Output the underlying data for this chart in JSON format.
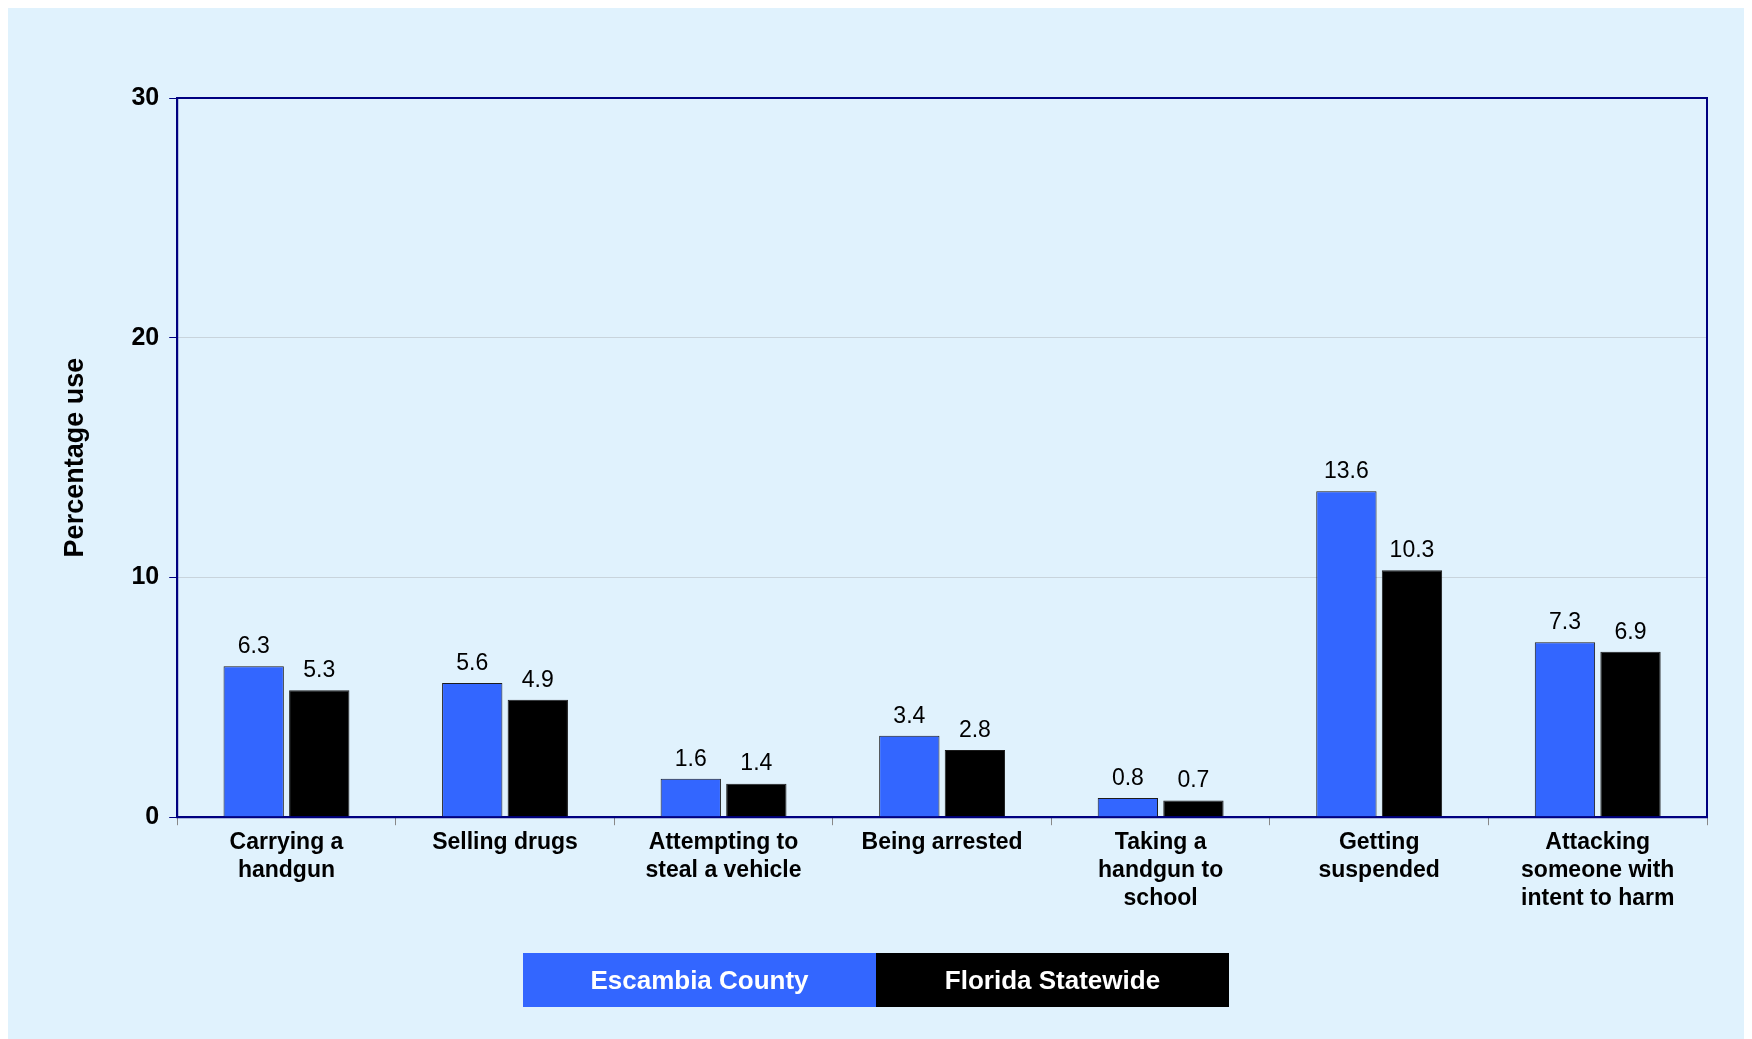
{
  "chart_data": {
    "type": "bar",
    "ylabel": "Percentage use",
    "categories": [
      "Carrying a handgun",
      "Selling drugs",
      "Attempting to steal a vehicle",
      "Being arrested",
      "Taking a handgun to school",
      "Getting suspended",
      "Attacking someone with intent to harm"
    ],
    "series": [
      {
        "name": "Escambia County",
        "color": "#3366ff",
        "values": [
          6.3,
          5.6,
          1.6,
          3.4,
          0.8,
          13.6,
          7.3
        ]
      },
      {
        "name": "Florida Statewide",
        "color": "#000000",
        "values": [
          5.3,
          4.9,
          1.4,
          2.8,
          0.7,
          10.3,
          6.9
        ]
      }
    ],
    "ylim": [
      0,
      30
    ],
    "yticks": [
      0,
      10,
      20,
      30
    ],
    "grid": "y",
    "legend": "bottom",
    "data_labels": true
  }
}
